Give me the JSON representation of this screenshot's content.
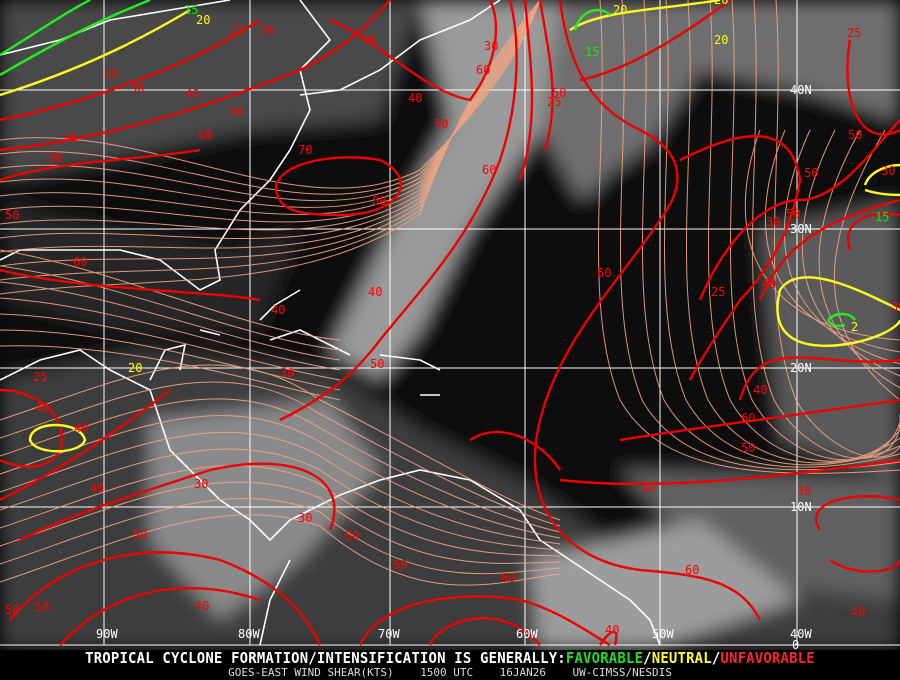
{
  "map": {
    "longitude_labels": [
      "90W",
      "80W",
      "70W",
      "60W",
      "50W",
      "40W"
    ],
    "latitude_labels": [
      "40N",
      "30N",
      "20N",
      "10N",
      "0"
    ],
    "colors": {
      "unfavorable": "#ff0000",
      "neutral": "#ffff00",
      "favorable": "#00ee00",
      "streamlines": "#f4a582",
      "grid": "#ffffff",
      "coastline": "#ffffff"
    },
    "contour_labels": [
      {
        "v": "15",
        "c": "favorable"
      },
      {
        "v": "20",
        "c": "neutral"
      },
      {
        "v": "25",
        "c": "unfavorable"
      },
      {
        "v": "30",
        "c": "unfavorable"
      },
      {
        "v": "25",
        "c": "unfavorable"
      },
      {
        "v": "30",
        "c": "unfavorable"
      },
      {
        "v": "40",
        "c": "unfavorable"
      },
      {
        "v": "50",
        "c": "unfavorable"
      },
      {
        "v": "60",
        "c": "unfavorable"
      },
      {
        "v": "70",
        "c": "unfavorable"
      },
      {
        "v": "60",
        "c": "unfavorable"
      },
      {
        "v": "50",
        "c": "unfavorable"
      },
      {
        "v": "60",
        "c": "unfavorable"
      },
      {
        "v": "70",
        "c": "unfavorable"
      },
      {
        "v": "60",
        "c": "unfavorable"
      },
      {
        "v": "30",
        "c": "unfavorable"
      },
      {
        "v": "40",
        "c": "unfavorable"
      },
      {
        "v": "50",
        "c": "unfavorable"
      },
      {
        "v": "60",
        "c": "unfavorable"
      },
      {
        "v": "30",
        "c": "unfavorable"
      },
      {
        "v": "25",
        "c": "unfavorable"
      },
      {
        "v": "50",
        "c": "unfavorable"
      },
      {
        "v": "60",
        "c": "unfavorable"
      },
      {
        "v": "40",
        "c": "unfavorable"
      },
      {
        "v": "40",
        "c": "unfavorable"
      },
      {
        "v": "50",
        "c": "unfavorable"
      },
      {
        "v": "30",
        "c": "unfavorable"
      },
      {
        "v": "25",
        "c": "unfavorable"
      },
      {
        "v": "40",
        "c": "unfavorable"
      },
      {
        "v": "20",
        "c": "neutral"
      },
      {
        "v": "40",
        "c": "unfavorable"
      },
      {
        "v": "40",
        "c": "unfavorable"
      },
      {
        "v": "50",
        "c": "unfavorable"
      },
      {
        "v": "30",
        "c": "unfavorable"
      },
      {
        "v": "30",
        "c": "unfavorable"
      },
      {
        "v": "50",
        "c": "unfavorable"
      },
      {
        "v": "50",
        "c": "unfavorable"
      },
      {
        "v": "60",
        "c": "unfavorable"
      },
      {
        "v": "60",
        "c": "unfavorable"
      },
      {
        "v": "50",
        "c": "unfavorable"
      },
      {
        "v": "50",
        "c": "unfavorable"
      },
      {
        "v": "40",
        "c": "unfavorable"
      },
      {
        "v": "40",
        "c": "unfavorable"
      },
      {
        "v": "40",
        "c": "unfavorable"
      },
      {
        "v": "60",
        "c": "unfavorable"
      },
      {
        "v": "25",
        "c": "unfavorable"
      },
      {
        "v": "40",
        "c": "unfavorable"
      },
      {
        "v": "30",
        "c": "unfavorable"
      },
      {
        "v": "50",
        "c": "unfavorable"
      },
      {
        "v": "50",
        "c": "unfavorable"
      },
      {
        "v": "50",
        "c": "unfavorable"
      },
      {
        "v": "25",
        "c": "unfavorable"
      },
      {
        "v": "20",
        "c": "neutral"
      },
      {
        "v": "15",
        "c": "favorable"
      },
      {
        "v": "20",
        "c": "neutral"
      },
      {
        "v": "20",
        "c": "neutral"
      },
      {
        "v": "30",
        "c": "unfavorable"
      },
      {
        "v": "15",
        "c": "favorable"
      },
      {
        "v": "2",
        "c": "neutral"
      },
      {
        "v": "30",
        "c": "unfavorable"
      },
      {
        "v": "40",
        "c": "unfavorable"
      },
      {
        "v": "60",
        "c": "unfavorable"
      },
      {
        "v": "50",
        "c": "unfavorable"
      },
      {
        "v": "30",
        "c": "unfavorable"
      },
      {
        "v": "30",
        "c": "unfavorable"
      }
    ]
  },
  "footer": {
    "headline_prefix": "TROPICAL CYCLONE FORMATION/INTENSIFICATION IS GENERALLY:",
    "favorable": "FAVORABLE",
    "sep1": "/",
    "neutral": "NEUTRAL",
    "sep2": "/",
    "unfavorable": "UNFAVORABLE",
    "product": "GOES-EAST WIND SHEAR(KTS)",
    "time": "1500 UTC",
    "date": "16JAN26",
    "source": "UW-CIMSS/NESDIS"
  }
}
